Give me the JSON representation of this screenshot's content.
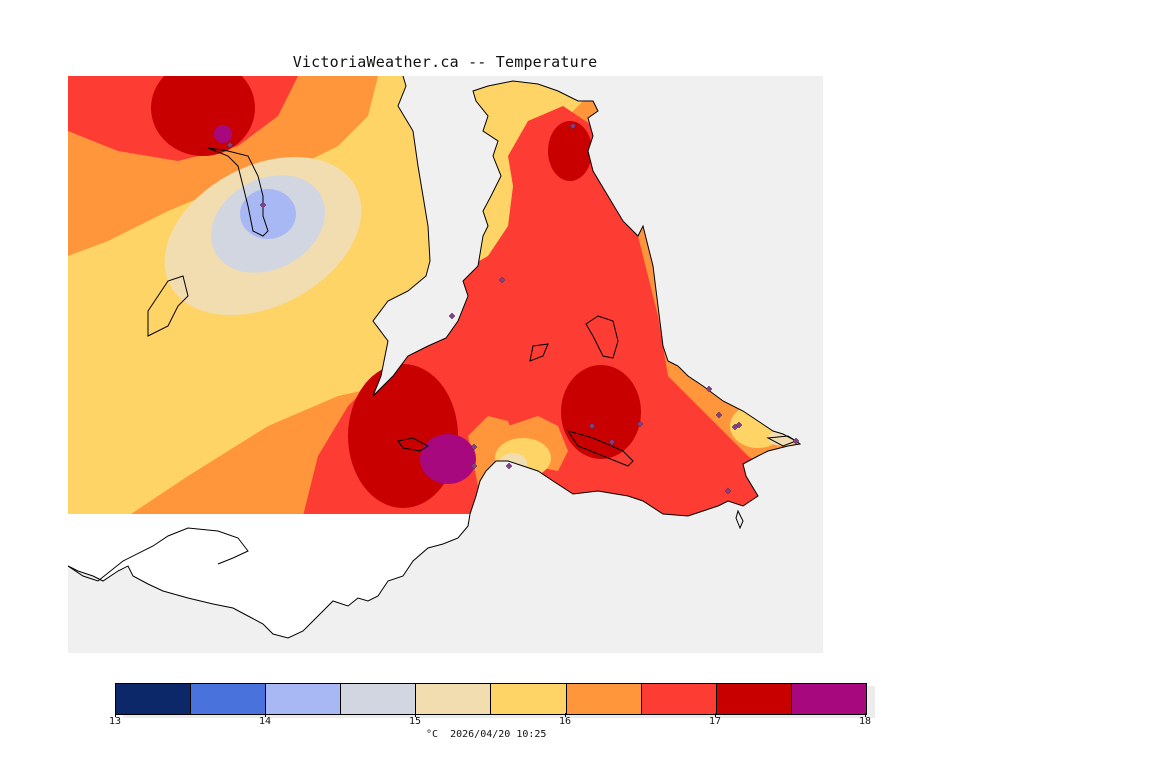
{
  "title": "VictoriaWeather.ca -- Temperature",
  "legend": {
    "unit": "°C",
    "min": 13,
    "max": 18,
    "tick_labels": [
      "13",
      "14",
      "15",
      "16",
      "17",
      "18"
    ],
    "bins": [
      {
        "from": 13.0,
        "to": 13.5,
        "color": "#0c2868"
      },
      {
        "from": 13.5,
        "to": 14.0,
        "color": "#4a72dd"
      },
      {
        "from": 14.0,
        "to": 14.5,
        "color": "#a8b8f5"
      },
      {
        "from": 14.5,
        "to": 15.0,
        "color": "#d2d6e0"
      },
      {
        "from": 15.0,
        "to": 15.5,
        "color": "#f1ddb0"
      },
      {
        "from": 15.5,
        "to": 16.0,
        "color": "#ffd466"
      },
      {
        "from": 16.0,
        "to": 16.5,
        "color": "#ff963c"
      },
      {
        "from": 16.5,
        "to": 17.0,
        "color": "#fd3c33"
      },
      {
        "from": 17.0,
        "to": 17.5,
        "color": "#c80000"
      },
      {
        "from": 17.5,
        "to": 18.0,
        "color": "#a8087e"
      }
    ]
  },
  "caption": {
    "unit": "°C",
    "timestamp": "2026/04/20 10:25"
  },
  "colors": {
    "water": "#f0f0f0",
    "land_uncontoured": "#ffffff",
    "coastline": "#000000",
    "station_marker": "#8a3c8c"
  }
}
